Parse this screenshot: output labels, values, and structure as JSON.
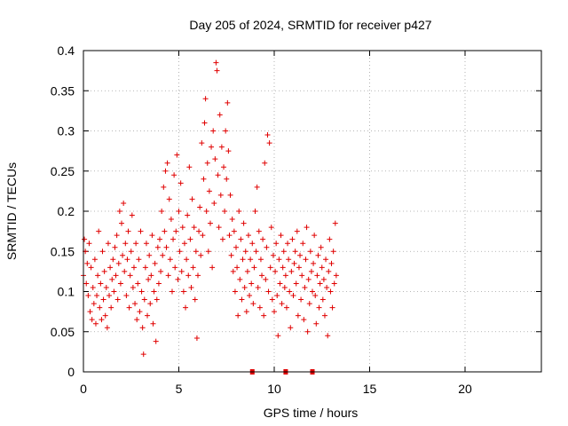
{
  "chart_data": {
    "type": "scatter",
    "title": "Day 205 of 2024, SRMTID for receiver p427",
    "xlabel": "GPS time / hours",
    "ylabel": "SRMTID / TECUs",
    "xlim": [
      0,
      24
    ],
    "ylim": [
      0,
      0.4
    ],
    "xticks": [
      0,
      5,
      10,
      15,
      20
    ],
    "yticks": [
      0,
      0.05,
      0.1,
      0.15,
      0.2,
      0.25,
      0.3,
      0.35,
      0.4
    ],
    "xtick_labels": [
      "0",
      "5",
      "10",
      "15",
      "20"
    ],
    "ytick_labels": [
      "0",
      "0.05",
      "0.1",
      "0.15",
      "0.2",
      "0.25",
      "0.3",
      "0.35",
      "0.4"
    ],
    "grid": true,
    "marker": "+",
    "color": "#e00000",
    "data_gap_markers_x": [
      8.85,
      10.6,
      12.0
    ],
    "series": [
      {
        "name": "SRMTID",
        "points": [
          [
            0.0,
            0.12
          ],
          [
            0.05,
            0.165
          ],
          [
            0.1,
            0.15
          ],
          [
            0.15,
            0.11
          ],
          [
            0.2,
            0.135
          ],
          [
            0.25,
            0.095
          ],
          [
            0.3,
            0.16
          ],
          [
            0.35,
            0.075
          ],
          [
            0.4,
            0.13
          ],
          [
            0.45,
            0.065
          ],
          [
            0.5,
            0.105
          ],
          [
            0.55,
            0.085
          ],
          [
            0.6,
            0.14
          ],
          [
            0.65,
            0.06
          ],
          [
            0.7,
            0.095
          ],
          [
            0.75,
            0.12
          ],
          [
            0.8,
            0.175
          ],
          [
            0.85,
            0.08
          ],
          [
            0.9,
            0.11
          ],
          [
            0.95,
            0.065
          ],
          [
            1.0,
            0.15
          ],
          [
            1.05,
            0.09
          ],
          [
            1.1,
            0.125
          ],
          [
            1.15,
            0.07
          ],
          [
            1.2,
            0.105
          ],
          [
            1.25,
            0.055
          ],
          [
            1.3,
            0.16
          ],
          [
            1.35,
            0.095
          ],
          [
            1.4,
            0.13
          ],
          [
            1.45,
            0.08
          ],
          [
            1.5,
            0.115
          ],
          [
            1.55,
            0.14
          ],
          [
            1.6,
            0.1
          ],
          [
            1.65,
            0.155
          ],
          [
            1.7,
            0.12
          ],
          [
            1.75,
            0.17
          ],
          [
            1.8,
            0.09
          ],
          [
            1.85,
            0.135
          ],
          [
            1.9,
            0.2
          ],
          [
            1.95,
            0.11
          ],
          [
            2.0,
            0.185
          ],
          [
            2.05,
            0.145
          ],
          [
            2.1,
            0.21
          ],
          [
            2.15,
            0.125
          ],
          [
            2.2,
            0.16
          ],
          [
            2.25,
            0.095
          ],
          [
            2.3,
            0.14
          ],
          [
            2.35,
            0.175
          ],
          [
            2.4,
            0.08
          ],
          [
            2.45,
            0.12
          ],
          [
            2.5,
            0.15
          ],
          [
            2.55,
            0.195
          ],
          [
            2.6,
            0.105
          ],
          [
            2.65,
            0.13
          ],
          [
            2.7,
            0.085
          ],
          [
            2.75,
            0.16
          ],
          [
            2.8,
            0.065
          ],
          [
            2.85,
            0.11
          ],
          [
            2.9,
            0.14
          ],
          [
            2.95,
            0.075
          ],
          [
            3.0,
            0.175
          ],
          [
            3.05,
            0.1
          ],
          [
            3.1,
            0.055
          ],
          [
            3.15,
            0.022
          ],
          [
            3.2,
            0.09
          ],
          [
            3.25,
            0.13
          ],
          [
            3.3,
            0.16
          ],
          [
            3.35,
            0.07
          ],
          [
            3.4,
            0.115
          ],
          [
            3.45,
            0.145
          ],
          [
            3.5,
            0.085
          ],
          [
            3.55,
            0.12
          ],
          [
            3.6,
            0.17
          ],
          [
            3.65,
            0.06
          ],
          [
            3.7,
            0.1
          ],
          [
            3.75,
            0.135
          ],
          [
            3.8,
            0.038
          ],
          [
            3.85,
            0.09
          ],
          [
            3.9,
            0.155
          ],
          [
            3.95,
            0.11
          ],
          [
            4.0,
            0.165
          ],
          [
            4.05,
            0.125
          ],
          [
            4.1,
            0.2
          ],
          [
            4.15,
            0.145
          ],
          [
            4.2,
            0.23
          ],
          [
            4.25,
            0.175
          ],
          [
            4.3,
            0.25
          ],
          [
            4.35,
            0.155
          ],
          [
            4.4,
            0.26
          ],
          [
            4.45,
            0.12
          ],
          [
            4.5,
            0.215
          ],
          [
            4.55,
            0.14
          ],
          [
            4.6,
            0.19
          ],
          [
            4.65,
            0.1
          ],
          [
            4.7,
            0.165
          ],
          [
            4.75,
            0.245
          ],
          [
            4.8,
            0.13
          ],
          [
            4.85,
            0.175
          ],
          [
            4.9,
            0.27
          ],
          [
            4.95,
            0.115
          ],
          [
            5.0,
            0.2
          ],
          [
            5.05,
            0.15
          ],
          [
            5.1,
            0.235
          ],
          [
            5.15,
            0.125
          ],
          [
            5.2,
            0.18
          ],
          [
            5.25,
            0.1
          ],
          [
            5.3,
            0.16
          ],
          [
            5.35,
            0.08
          ],
          [
            5.4,
            0.14
          ],
          [
            5.45,
            0.195
          ],
          [
            5.5,
            0.12
          ],
          [
            5.55,
            0.255
          ],
          [
            5.6,
            0.165
          ],
          [
            5.65,
            0.105
          ],
          [
            5.7,
            0.215
          ],
          [
            5.75,
            0.13
          ],
          [
            5.8,
            0.18
          ],
          [
            5.85,
            0.09
          ],
          [
            5.9,
            0.15
          ],
          [
            5.95,
            0.042
          ],
          [
            6.0,
            0.12
          ],
          [
            6.05,
            0.175
          ],
          [
            6.1,
            0.205
          ],
          [
            6.15,
            0.145
          ],
          [
            6.2,
            0.285
          ],
          [
            6.25,
            0.17
          ],
          [
            6.3,
            0.24
          ],
          [
            6.35,
            0.31
          ],
          [
            6.4,
            0.34
          ],
          [
            6.45,
            0.2
          ],
          [
            6.5,
            0.26
          ],
          [
            6.55,
            0.15
          ],
          [
            6.6,
            0.225
          ],
          [
            6.65,
            0.185
          ],
          [
            6.7,
            0.28
          ],
          [
            6.75,
            0.13
          ],
          [
            6.8,
            0.3
          ],
          [
            6.85,
            0.21
          ],
          [
            6.9,
            0.265
          ],
          [
            6.95,
            0.385
          ],
          [
            7.0,
            0.375
          ],
          [
            7.05,
            0.245
          ],
          [
            7.1,
            0.18
          ],
          [
            7.15,
            0.32
          ],
          [
            7.2,
            0.22
          ],
          [
            7.25,
            0.28
          ],
          [
            7.3,
            0.165
          ],
          [
            7.35,
            0.255
          ],
          [
            7.4,
            0.2
          ],
          [
            7.45,
            0.3
          ],
          [
            7.5,
            0.24
          ],
          [
            7.55,
            0.335
          ],
          [
            7.6,
            0.275
          ],
          [
            7.65,
            0.17
          ],
          [
            7.7,
            0.22
          ],
          [
            7.75,
            0.145
          ],
          [
            7.8,
            0.19
          ],
          [
            7.85,
            0.125
          ],
          [
            7.9,
            0.175
          ],
          [
            7.95,
            0.1
          ],
          [
            8.0,
            0.155
          ],
          [
            8.05,
            0.13
          ],
          [
            8.1,
            0.07
          ],
          [
            8.15,
            0.2
          ],
          [
            8.2,
            0.115
          ],
          [
            8.25,
            0.165
          ],
          [
            8.3,
            0.09
          ],
          [
            8.35,
            0.14
          ],
          [
            8.4,
            0.185
          ],
          [
            8.45,
            0.105
          ],
          [
            8.5,
            0.15
          ],
          [
            8.55,
            0.075
          ],
          [
            8.6,
            0.125
          ],
          [
            8.65,
            0.17
          ],
          [
            8.7,
            0.095
          ],
          [
            8.75,
            0.14
          ],
          [
            8.8,
            0.11
          ],
          [
            8.85,
            0.16
          ],
          [
            8.9,
            0.085
          ],
          [
            8.95,
            0.13
          ],
          [
            9.0,
            0.2
          ],
          [
            9.05,
            0.15
          ],
          [
            9.1,
            0.23
          ],
          [
            9.15,
            0.105
          ],
          [
            9.2,
            0.175
          ],
          [
            9.25,
            0.08
          ],
          [
            9.3,
            0.14
          ],
          [
            9.35,
            0.12
          ],
          [
            9.4,
            0.165
          ],
          [
            9.45,
            0.07
          ],
          [
            9.5,
            0.26
          ],
          [
            9.55,
            0.115
          ],
          [
            9.6,
            0.155
          ],
          [
            9.65,
            0.295
          ],
          [
            9.7,
            0.1
          ],
          [
            9.75,
            0.285
          ],
          [
            9.8,
            0.13
          ],
          [
            9.85,
            0.18
          ],
          [
            9.9,
            0.09
          ],
          [
            9.95,
            0.145
          ],
          [
            10.0,
            0.075
          ],
          [
            10.05,
            0.125
          ],
          [
            10.1,
            0.16
          ],
          [
            10.15,
            0.095
          ],
          [
            10.2,
            0.045
          ],
          [
            10.25,
            0.14
          ],
          [
            10.3,
            0.11
          ],
          [
            10.35,
            0.17
          ],
          [
            10.4,
            0.085
          ],
          [
            10.45,
            0.13
          ],
          [
            10.5,
            0.15
          ],
          [
            10.55,
            0.105
          ],
          [
            10.6,
            0.12
          ],
          [
            10.65,
            0.08
          ],
          [
            10.7,
            0.16
          ],
          [
            10.75,
            0.14
          ],
          [
            10.8,
            0.1
          ],
          [
            10.85,
            0.055
          ],
          [
            10.9,
            0.125
          ],
          [
            10.95,
            0.165
          ],
          [
            11.0,
            0.095
          ],
          [
            11.05,
            0.135
          ],
          [
            11.1,
            0.15
          ],
          [
            11.15,
            0.11
          ],
          [
            11.2,
            0.175
          ],
          [
            11.25,
            0.07
          ],
          [
            11.3,
            0.13
          ],
          [
            11.35,
            0.145
          ],
          [
            11.4,
            0.09
          ],
          [
            11.45,
            0.12
          ],
          [
            11.5,
            0.16
          ],
          [
            11.55,
            0.065
          ],
          [
            11.6,
            0.105
          ],
          [
            11.65,
            0.14
          ],
          [
            11.7,
            0.18
          ],
          [
            11.75,
            0.05
          ],
          [
            11.8,
            0.115
          ],
          [
            11.85,
            0.085
          ],
          [
            11.9,
            0.15
          ],
          [
            11.95,
            0.125
          ],
          [
            12.0,
            0.1
          ],
          [
            12.05,
            0.135
          ],
          [
            12.1,
            0.17
          ],
          [
            12.15,
            0.095
          ],
          [
            12.2,
            0.06
          ],
          [
            12.25,
            0.12
          ],
          [
            12.3,
            0.145
          ],
          [
            12.35,
            0.08
          ],
          [
            12.4,
            0.11
          ],
          [
            12.45,
            0.155
          ],
          [
            12.5,
            0.13
          ],
          [
            12.55,
            0.09
          ],
          [
            12.6,
            0.115
          ],
          [
            12.65,
            0.07
          ],
          [
            12.7,
            0.14
          ],
          [
            12.75,
            0.105
          ],
          [
            12.8,
            0.045
          ],
          [
            12.85,
            0.125
          ],
          [
            12.9,
            0.165
          ],
          [
            12.95,
            0.1
          ],
          [
            13.0,
            0.135
          ],
          [
            13.05,
            0.08
          ],
          [
            13.1,
            0.15
          ],
          [
            13.15,
            0.11
          ],
          [
            13.2,
            0.185
          ],
          [
            13.25,
            0.12
          ]
        ]
      }
    ]
  }
}
